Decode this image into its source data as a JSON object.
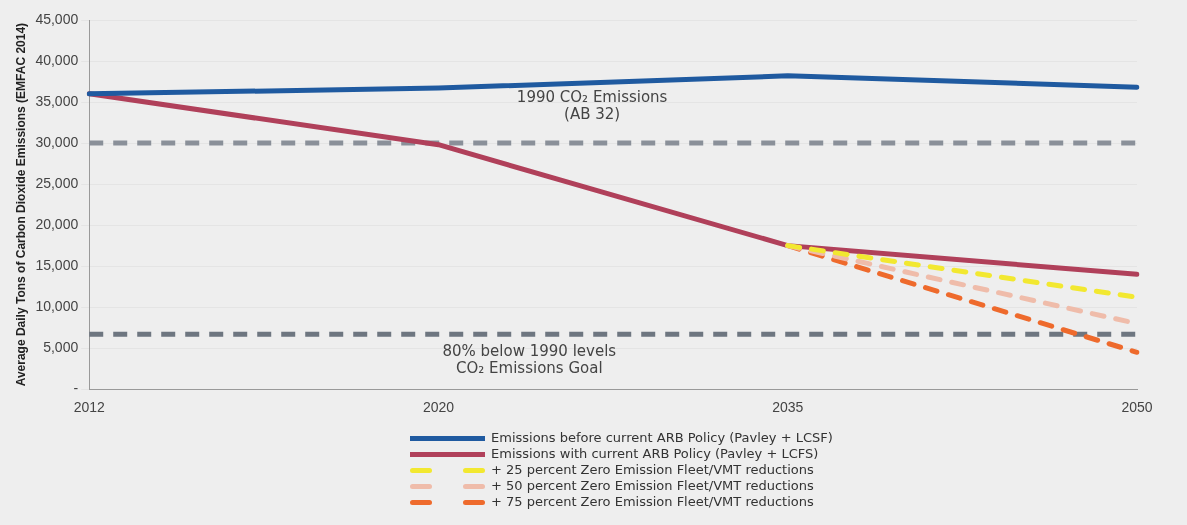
{
  "chart_data": {
    "type": "line",
    "ylabel": "Average Daily Tons of Carbon Dioxide Emissions (EMFAC 2014)",
    "categories": [
      "2012",
      "2020",
      "2035",
      "2050"
    ],
    "series": [
      {
        "name": "Emissions before current ARB Policy (Pavley + LCSF)",
        "color": "#1f5aa0",
        "values": [
          36000,
          36700,
          38200,
          36800
        ]
      },
      {
        "name": "Emissions with current ARB Policy (Pavley + LCFS)",
        "color": "#b0405a",
        "values": [
          36000,
          29800,
          17500,
          14000
        ]
      },
      {
        "name": "+ 25 percent Zero Emission Fleet/VMT reductions",
        "color": "#f2e830",
        "line_style": "dashed",
        "values": [
          null,
          null,
          17500,
          11200
        ]
      },
      {
        "name": "+ 50 percent Zero Emission Fleet/VMT reductions",
        "color": "#efbcaa",
        "line_style": "dashed",
        "values": [
          null,
          null,
          17500,
          8000
        ]
      },
      {
        "name": "+ 75 percent Zero Emission Fleet/VMT reductions",
        "color": "#ee6a2c",
        "line_style": "dashed",
        "values": [
          null,
          null,
          17500,
          4500
        ]
      }
    ],
    "ylim": [
      0,
      45000
    ],
    "yticks": [
      {
        "value": 0,
        "label": "-"
      },
      {
        "value": 5000,
        "label": "5,000"
      },
      {
        "value": 10000,
        "label": "10,000"
      },
      {
        "value": 15000,
        "label": "15,000"
      },
      {
        "value": 20000,
        "label": "20,000"
      },
      {
        "value": 25000,
        "label": "25,000"
      },
      {
        "value": 30000,
        "label": "30,000"
      },
      {
        "value": 35000,
        "label": "35,000"
      },
      {
        "value": 40000,
        "label": "40,000"
      },
      {
        "value": 45000,
        "label": "45,000"
      }
    ],
    "ref_lines": [
      {
        "axis": "y",
        "value": 30000,
        "label": "1990 CO₂ Emissions\n(AB 32)",
        "color": "#8a9099",
        "line_style": "dashed"
      },
      {
        "axis": "y",
        "value": 6700,
        "label": "80% below 1990 levels\nCO₂ Emissions Goal",
        "color": "#6e7680",
        "line_style": "dashed"
      }
    ],
    "grid": "y",
    "legend": "bottom",
    "marker": "none",
    "line_style": "solid"
  }
}
